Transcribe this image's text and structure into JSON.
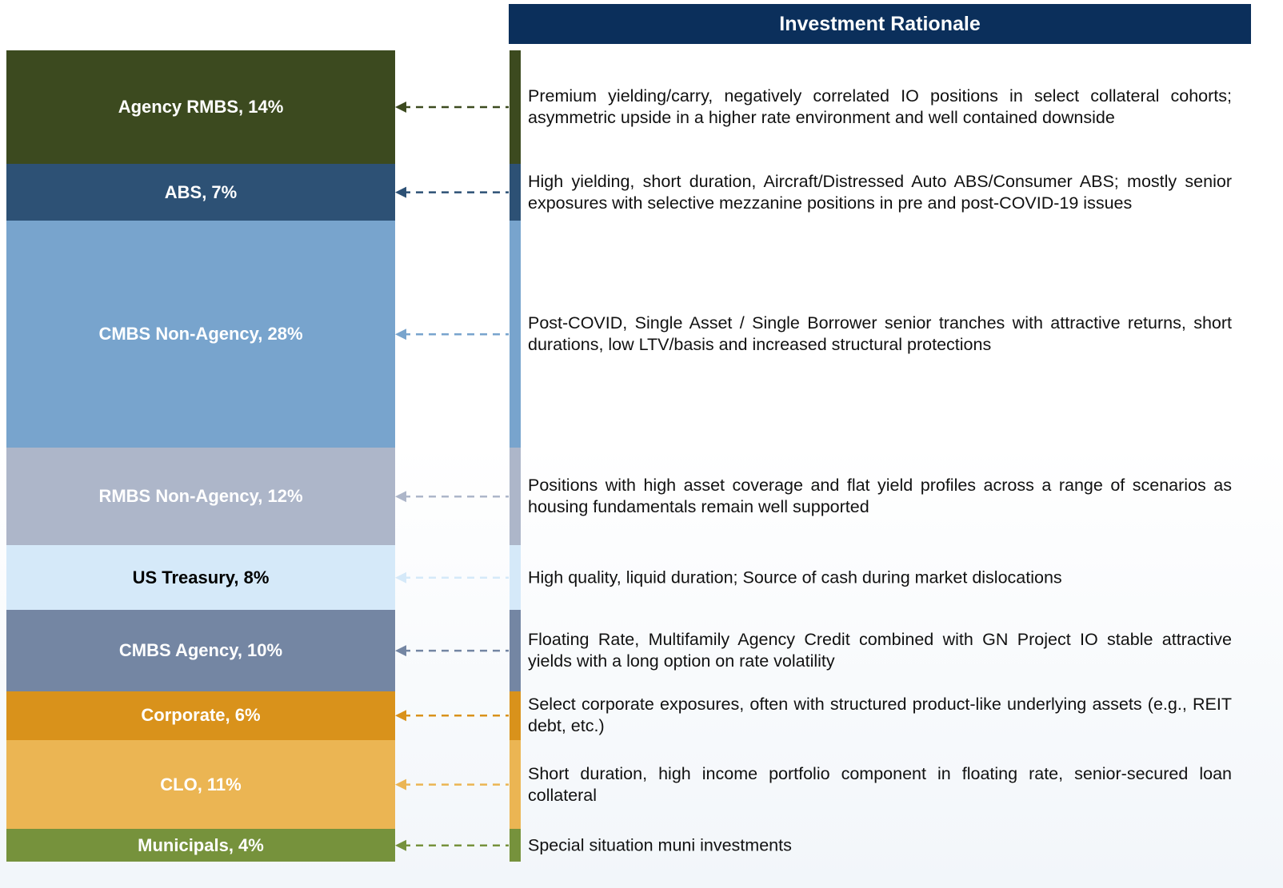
{
  "chart_data": {
    "type": "stacked_bar",
    "header": "Investment Rationale",
    "segments": [
      {
        "label": "Agency RMBS, 14%",
        "value": 14,
        "color": "#3c4a1f",
        "label_color": "#ffffff",
        "rationale": "Premium yielding/carry, negatively correlated IO positions in select collateral cohorts; asymmetric upside in a higher rate environment and well contained downside"
      },
      {
        "label": "ABS, 7%",
        "value": 7,
        "color": "#2d5175",
        "label_color": "#ffffff",
        "rationale": "High yielding, short duration, Aircraft/Distressed Auto ABS/Consumer ABS; mostly senior exposures with selective mezzanine positions in pre and post-COVID-19 issues"
      },
      {
        "label": "CMBS Non-Agency, 28%",
        "value": 28,
        "color": "#78a4cd",
        "label_color": "#ffffff",
        "rationale": "Post-COVID, Single Asset / Single Borrower senior tranches with attractive returns, short durations, low LTV/basis and increased structural protections"
      },
      {
        "label": "RMBS Non-Agency, 12%",
        "value": 12,
        "color": "#adb6c9",
        "label_color": "#ffffff",
        "rationale": "Positions with high asset coverage and flat yield profiles across a range of scenarios as housing fundamentals remain well supported"
      },
      {
        "label": "US Treasury, 8%",
        "value": 8,
        "color": "#d5e9f9",
        "label_color": "#000000",
        "rationale": "High quality, liquid duration; Source of cash during market dislocations"
      },
      {
        "label": "CMBS Agency, 10%",
        "value": 10,
        "color": "#7486a3",
        "label_color": "#ffffff",
        "rationale": "Floating Rate, Multifamily Agency Credit combined with GN Project IO stable attractive yields with a long option on rate volatility"
      },
      {
        "label": "Corporate, 6%",
        "value": 6,
        "color": "#d9921b",
        "label_color": "#ffffff",
        "rationale": "Select corporate exposures, often with structured product-like underlying assets (e.g., REIT debt, etc.)"
      },
      {
        "label": "CLO, 11%",
        "value": 11,
        "color": "#ebb553",
        "label_color": "#ffffff",
        "rationale": "Short duration, high income portfolio component in floating rate, senior-secured loan collateral"
      },
      {
        "label": "Municipals, 4%",
        "value": 4,
        "color": "#76923c",
        "label_color": "#ffffff",
        "rationale": "Special situation muni investments"
      }
    ]
  }
}
